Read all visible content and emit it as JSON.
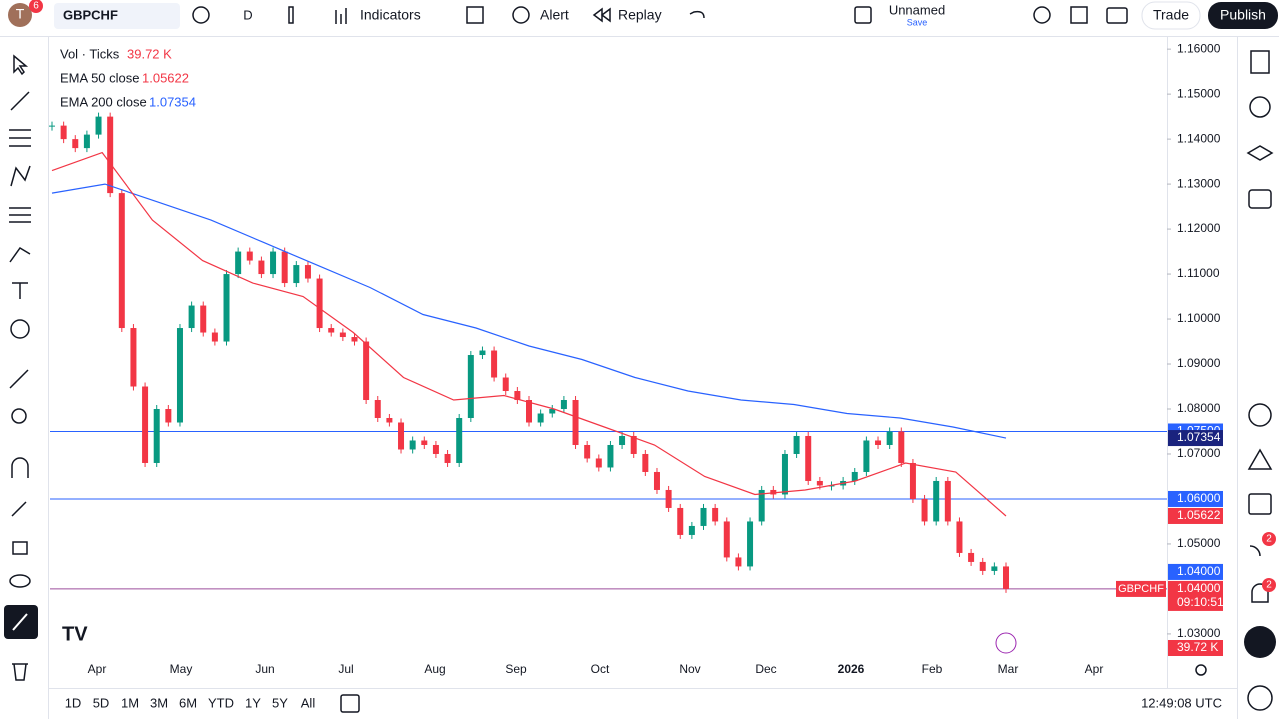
{
  "toolbar": {
    "avatar": "T",
    "badge": "6",
    "symbol": "GBPCHF",
    "interval": "D",
    "indicators": "Indicators",
    "alert": "Alert",
    "replay": "Replay",
    "layout_name": "Unnamed",
    "save": "Save",
    "trade": "Trade",
    "publish": "Publish"
  },
  "legend": {
    "vol_label": "Vol · Ticks",
    "vol_value": "39.72 K",
    "ema50_label": "EMA 50 close",
    "ema50_value": "1.05622",
    "ema200_label": "EMA 200 close",
    "ema200_value": "1.07354"
  },
  "chart_data": {
    "type": "candlestick",
    "symbol": "GBPCHF",
    "closes": [
      1.143,
      1.14,
      1.138,
      1.141,
      1.145,
      1.128,
      1.098,
      1.085,
      1.068,
      1.08,
      1.077,
      1.098,
      1.103,
      1.097,
      1.095,
      1.11,
      1.115,
      1.113,
      1.11,
      1.115,
      1.108,
      1.112,
      1.109,
      1.098,
      1.097,
      1.096,
      1.095,
      1.082,
      1.078,
      1.077,
      1.071,
      1.073,
      1.072,
      1.07,
      1.068,
      1.078,
      1.092,
      1.093,
      1.087,
      1.084,
      1.082,
      1.077,
      1.079,
      1.08,
      1.082,
      1.072,
      1.069,
      1.067,
      1.072,
      1.074,
      1.07,
      1.066,
      1.062,
      1.058,
      1.052,
      1.054,
      1.058,
      1.055,
      1.047,
      1.045,
      1.055,
      1.062,
      1.061,
      1.07,
      1.074,
      1.064,
      1.063,
      1.063,
      1.064,
      1.066,
      1.073,
      1.072,
      1.075,
      1.068,
      1.06,
      1.055,
      1.064,
      1.055,
      1.048,
      1.046,
      1.044,
      1.045,
      1.04
    ],
    "ema50": [
      1.133,
      1.137,
      1.122,
      1.113,
      1.108,
      1.105,
      1.097,
      1.087,
      1.082,
      1.083,
      1.08,
      1.076,
      1.072,
      1.065,
      1.061,
      1.062,
      1.064,
      1.068,
      1.066,
      1.05622
    ],
    "ema200": [
      1.128,
      1.13,
      1.126,
      1.122,
      1.117,
      1.112,
      1.107,
      1.101,
      1.098,
      1.094,
      1.091,
      1.087,
      1.084,
      1.082,
      1.081,
      1.079,
      1.078,
      1.076,
      1.07354
    ],
    "ema50_color": "#f23645",
    "ema200_color": "#2962ff",
    "up_color": "#089981",
    "down_color": "#f23645",
    "ylim": [
      1.0242,
      1.1627
    ],
    "yticks": [
      {
        "value": 1.16,
        "label": "1.16000"
      },
      {
        "value": 1.15,
        "label": "1.15000"
      },
      {
        "value": 1.14,
        "label": "1.14000"
      },
      {
        "value": 1.13,
        "label": "1.13000"
      },
      {
        "value": 1.12,
        "label": "1.12000"
      },
      {
        "value": 1.11,
        "label": "1.11000"
      },
      {
        "value": 1.1,
        "label": "1.10000"
      },
      {
        "value": 1.09,
        "label": "1.09000"
      },
      {
        "value": 1.08,
        "label": "1.08000"
      },
      {
        "value": 1.07,
        "label": "1.07000"
      },
      {
        "value": 1.05,
        "label": "1.05000"
      },
      {
        "value": 1.03,
        "label": "1.03000"
      }
    ],
    "levels": [
      {
        "value": 1.075,
        "label": "1.07500",
        "color": "#2962ff"
      },
      {
        "value": 1.06,
        "label": "1.06000",
        "color": "#2962ff"
      },
      {
        "value": 1.04,
        "label": "1.04000",
        "color": "#9c4d9c"
      }
    ],
    "ema200_last": {
      "value": 1.07354,
      "label": "1.07354"
    },
    "ema50_last": {
      "value": 1.05622,
      "label": "1.05622"
    },
    "last_price": {
      "value": 1.04,
      "label": "1.04000"
    },
    "countdown": "09:10:51",
    "xticks": [
      "Apr",
      "May",
      "Jun",
      "Jul",
      "Aug",
      "Sep",
      "Oct",
      "Nov",
      "Dec",
      "2026",
      "Feb",
      "Mar",
      "Apr"
    ]
  },
  "bottom": {
    "ranges": [
      "1D",
      "5D",
      "1M",
      "3M",
      "6M",
      "YTD",
      "1Y",
      "5Y",
      "All"
    ],
    "clock": "12:49:08 UTC"
  },
  "sidebar": {
    "badge_a": "2",
    "badge_b": "2"
  }
}
